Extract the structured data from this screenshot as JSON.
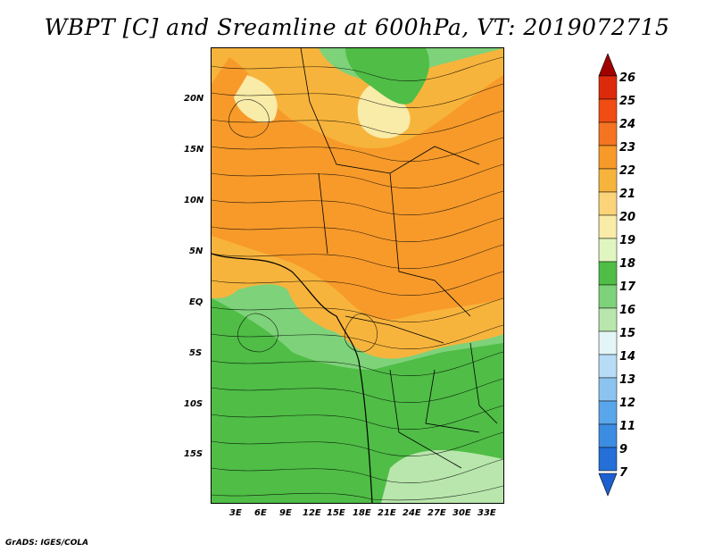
{
  "title": "WBPT [C] and Sreamline at 600hPa, VT: 2019072715",
  "footer": "GrADS: IGES/COLA",
  "lat_labels": [
    "20N",
    "15N",
    "10N",
    "5N",
    "EQ",
    "5S",
    "10S",
    "15S"
  ],
  "lon_labels": [
    "3E",
    "6E",
    "9E",
    "12E",
    "15E",
    "18E",
    "21E",
    "24E",
    "27E",
    "30E",
    "33E"
  ],
  "colorbar": {
    "labels": [
      "26",
      "25",
      "24",
      "23",
      "22",
      "21",
      "20",
      "19",
      "18",
      "17",
      "16",
      "15",
      "14",
      "13",
      "12",
      "11",
      "9",
      "7"
    ],
    "colors": [
      "#c00000",
      "#dd2a0c",
      "#f04c14",
      "#f47422",
      "#f79a2a",
      "#f7b43c",
      "#fbd47a",
      "#f9eba8",
      "#e0f5c0",
      "#4fbd46",
      "#7ed27a",
      "#b8e6ac",
      "#e2f6f7",
      "#b8dcf6",
      "#8cc4f0",
      "#5aa6ea",
      "#3c8ce2",
      "#246fd8"
    ]
  },
  "map_colors": {
    "warm_dark": "#f79a2a",
    "warm_mid": "#f7b43c",
    "warm_light": "#fbd47a",
    "warm_pale": "#f9eba8",
    "green_dark": "#4fbd46",
    "green_mid": "#7ed27a",
    "green_light": "#b8e6ac"
  }
}
